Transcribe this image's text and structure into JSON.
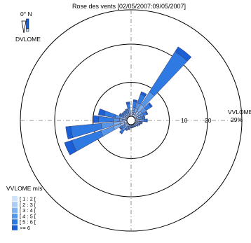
{
  "chart_data": {
    "type": "wind-rose",
    "title": "Rose des vents [02/05/2007:09/05/2007]",
    "north_label": "0° N",
    "direction_variable": "DVLOME",
    "speed_variable_label": "VVLOME",
    "max_percent_label": "29%",
    "radial_ticks": [
      10,
      20
    ],
    "radial_max": 29,
    "grid": true,
    "legend": {
      "title": "VVLOME m/s",
      "placement": "bottom-left",
      "entries": [
        {
          "label": "[ 1 : 2 [",
          "color": "#cfe3fb"
        },
        {
          "label": "[ 2 : 3 [",
          "color": "#a9cbf6"
        },
        {
          "label": "[ 3 : 4 [",
          "color": "#7fb2f1"
        },
        {
          "label": "[ 4 : 5 [",
          "color": "#5596ea"
        },
        {
          "label": "[ 5 : 6 [",
          "color": "#2f79e2"
        },
        {
          "label": ">= 6",
          "color": "#1b5fd6"
        }
      ]
    },
    "calm_center": true,
    "sectors": [
      {
        "direction": 12,
        "segments": [
          0.5,
          0.5,
          0.6,
          0.8,
          1.5,
          0.5
        ]
      },
      {
        "direction": 25,
        "segments": [
          0.6,
          0.6,
          1.0,
          1.6,
          2.4,
          0.7
        ]
      },
      {
        "direction": 38,
        "segments": [
          0.8,
          1.0,
          2.0,
          4.0,
          12.5,
          1.5
        ]
      },
      {
        "direction": 51,
        "segments": [
          0.6,
          0.7,
          1.0,
          1.4,
          1.5,
          0.4
        ]
      },
      {
        "direction": 64,
        "segments": [
          0.5,
          0.5,
          0.6,
          0.8,
          0.9,
          0.3
        ]
      },
      {
        "direction": 77,
        "segments": [
          0.4,
          0.4,
          0.5,
          0.6,
          0.5,
          0.2
        ]
      },
      {
        "direction": 90,
        "segments": [
          0.5,
          0.6,
          0.6,
          0.7,
          0.6,
          0.2
        ]
      },
      {
        "direction": 103,
        "segments": [
          0.3,
          0.4,
          0.4,
          0.4,
          0.3,
          0.1
        ]
      },
      {
        "direction": 116,
        "segments": [
          0.3,
          0.3,
          0.3,
          0.3,
          0.2,
          0.1
        ]
      },
      {
        "direction": 129,
        "segments": [
          0.2,
          0.3,
          0.3,
          0.2,
          0.2,
          0.0
        ]
      },
      {
        "direction": 142,
        "segments": [
          0.2,
          0.2,
          0.2,
          0.2,
          0.1,
          0.0
        ]
      },
      {
        "direction": 155,
        "segments": [
          0.2,
          0.2,
          0.2,
          0.1,
          0.1,
          0.0
        ]
      },
      {
        "direction": 168,
        "segments": [
          0.2,
          0.2,
          0.2,
          0.2,
          0.1,
          0.0
        ]
      },
      {
        "direction": 181,
        "segments": [
          0.2,
          0.2,
          0.2,
          0.2,
          0.1,
          0.0
        ]
      },
      {
        "direction": 194,
        "segments": [
          0.2,
          0.3,
          0.3,
          0.3,
          0.2,
          0.1
        ]
      },
      {
        "direction": 207,
        "segments": [
          0.3,
          0.3,
          0.4,
          0.4,
          0.3,
          0.1
        ]
      },
      {
        "direction": 220,
        "segments": [
          0.4,
          0.5,
          0.6,
          0.7,
          0.8,
          0.2
        ]
      },
      {
        "direction": 233,
        "segments": [
          0.3,
          0.4,
          0.4,
          0.5,
          0.6,
          0.3
        ]
      },
      {
        "direction": 246,
        "segments": [
          0.8,
          1.0,
          2.0,
          3.5,
          8.0,
          2.0
        ]
      },
      {
        "direction": 259,
        "segments": [
          0.7,
          0.9,
          2.0,
          3.2,
          8.0,
          1.3
        ]
      },
      {
        "direction": 272,
        "segments": [
          0.5,
          0.6,
          0.8,
          1.5,
          4.0,
          1.4
        ]
      },
      {
        "direction": 285,
        "segments": [
          0.5,
          0.6,
          0.8,
          1.2,
          3.0,
          1.5
        ]
      },
      {
        "direction": 298,
        "segments": [
          0.3,
          0.4,
          0.4,
          0.5,
          0.5,
          0.2
        ]
      },
      {
        "direction": 311,
        "segments": [
          0.3,
          0.3,
          0.4,
          0.4,
          0.4,
          0.1
        ]
      },
      {
        "direction": 324,
        "segments": [
          0.3,
          0.3,
          0.4,
          0.4,
          0.4,
          0.1
        ]
      },
      {
        "direction": 337,
        "segments": [
          0.3,
          0.4,
          0.4,
          0.5,
          0.4,
          0.1
        ]
      },
      {
        "direction": 350,
        "segments": [
          0.4,
          0.4,
          0.6,
          0.8,
          1.2,
          0.4
        ]
      }
    ]
  }
}
